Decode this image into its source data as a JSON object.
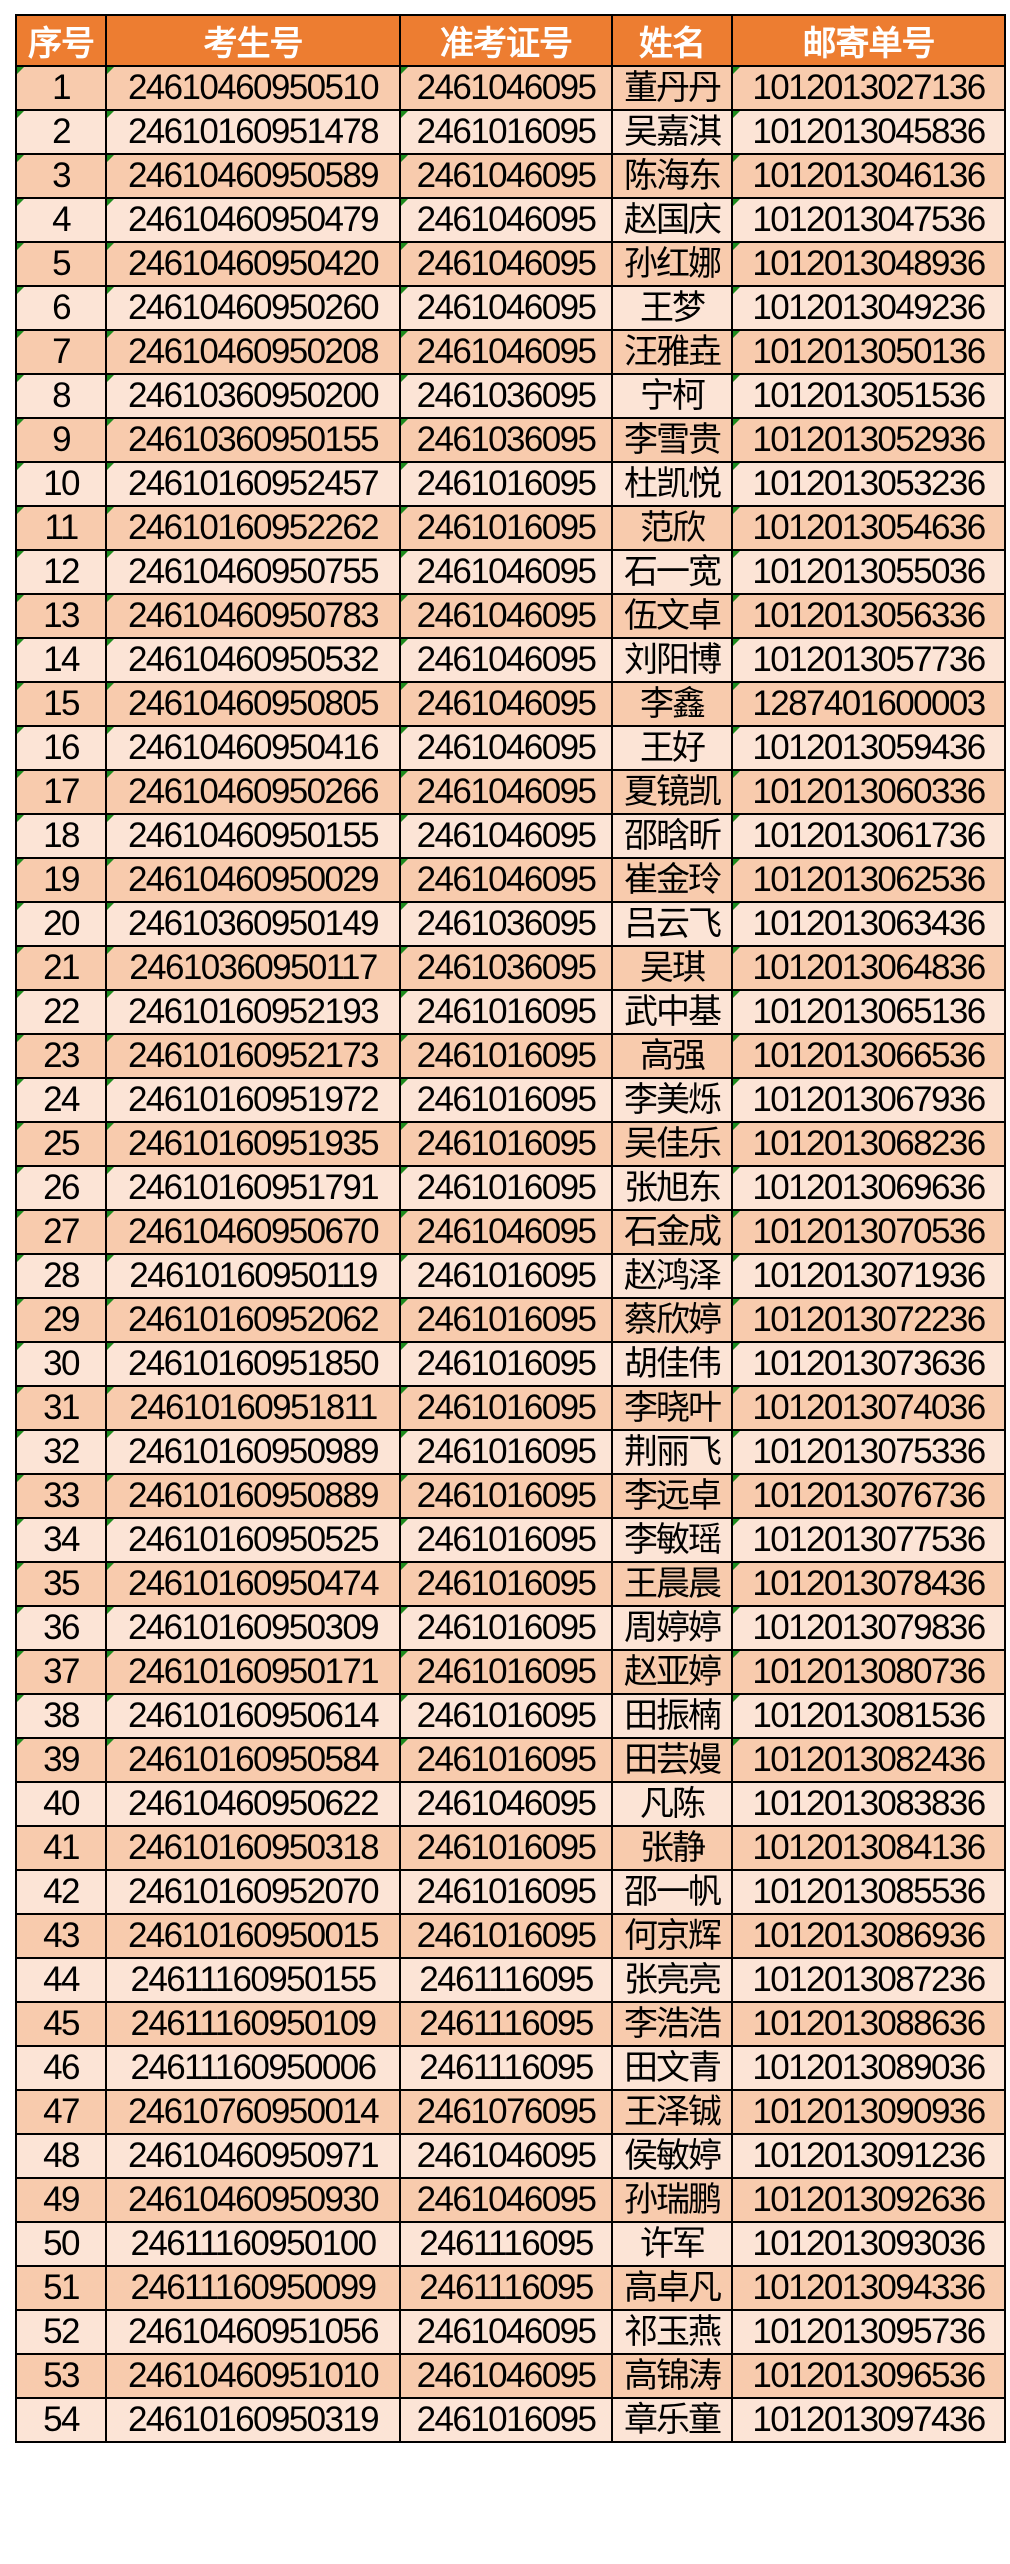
{
  "table": {
    "headers": [
      "序号",
      "考生号",
      "准考证号",
      "姓名",
      "邮寄单号"
    ],
    "colors": {
      "header": "#ED7D31",
      "row_odd": "#F8CBAD",
      "row_even": "#FCE4D6",
      "flag": "#1E8B1E"
    },
    "rows": [
      [
        "1",
        "24610460950510",
        "2461046095",
        "董丹丹",
        "1012013027136",
        true
      ],
      [
        "2",
        "24610160951478",
        "2461016095",
        "吴嘉淇",
        "1012013045836",
        true
      ],
      [
        "3",
        "24610460950589",
        "2461046095",
        "陈海东",
        "1012013046136",
        true
      ],
      [
        "4",
        "24610460950479",
        "2461046095",
        "赵国庆",
        "1012013047536",
        true
      ],
      [
        "5",
        "24610460950420",
        "2461046095",
        "孙红娜",
        "1012013048936",
        true
      ],
      [
        "6",
        "24610460950260",
        "2461046095",
        "王梦",
        "1012013049236",
        true
      ],
      [
        "7",
        "24610460950208",
        "2461046095",
        "汪雅垚",
        "1012013050136",
        true
      ],
      [
        "8",
        "24610360950200",
        "2461036095",
        "宁柯",
        "1012013051536",
        true
      ],
      [
        "9",
        "24610360950155",
        "2461036095",
        "李雪贵",
        "1012013052936",
        true
      ],
      [
        "10",
        "24610160952457",
        "2461016095",
        "杜凯悦",
        "1012013053236",
        true
      ],
      [
        "11",
        "24610160952262",
        "2461016095",
        "范欣",
        "1012013054636",
        true
      ],
      [
        "12",
        "24610460950755",
        "2461046095",
        "石一宽",
        "1012013055036",
        true
      ],
      [
        "13",
        "24610460950783",
        "2461046095",
        "伍文卓",
        "1012013056336",
        true
      ],
      [
        "14",
        "24610460950532",
        "2461046095",
        "刘阳博",
        "1012013057736",
        true
      ],
      [
        "15",
        "24610460950805",
        "2461046095",
        "李鑫",
        "1287401600003",
        true
      ],
      [
        "16",
        "24610460950416",
        "2461046095",
        "王好",
        "1012013059436",
        true
      ],
      [
        "17",
        "24610460950266",
        "2461046095",
        "夏镜凯",
        "1012013060336",
        true
      ],
      [
        "18",
        "24610460950155",
        "2461046095",
        "邵晗昕",
        "1012013061736",
        true
      ],
      [
        "19",
        "24610460950029",
        "2461046095",
        "崔金玲",
        "1012013062536",
        true
      ],
      [
        "20",
        "24610360950149",
        "2461036095",
        "吕云飞",
        "1012013063436",
        true
      ],
      [
        "21",
        "24610360950117",
        "2461036095",
        "吴琪",
        "1012013064836",
        true
      ],
      [
        "22",
        "24610160952193",
        "2461016095",
        "武中基",
        "1012013065136",
        true
      ],
      [
        "23",
        "24610160952173",
        "2461016095",
        "高强",
        "1012013066536",
        true
      ],
      [
        "24",
        "24610160951972",
        "2461016095",
        "李美烁",
        "1012013067936",
        true
      ],
      [
        "25",
        "24610160951935",
        "2461016095",
        "吴佳乐",
        "1012013068236",
        true
      ],
      [
        "26",
        "24610160951791",
        "2461016095",
        "张旭东",
        "1012013069636",
        true
      ],
      [
        "27",
        "24610460950670",
        "2461046095",
        "石金成",
        "1012013070536",
        true
      ],
      [
        "28",
        "24610160950119",
        "2461016095",
        "赵鸿泽",
        "1012013071936",
        true
      ],
      [
        "29",
        "24610160952062",
        "2461016095",
        "蔡欣婷",
        "1012013072236",
        true
      ],
      [
        "30",
        "24610160951850",
        "2461016095",
        "胡佳伟",
        "1012013073636",
        true
      ],
      [
        "31",
        "24610160951811",
        "2461016095",
        "李晓叶",
        "1012013074036",
        true
      ],
      [
        "32",
        "24610160950989",
        "2461016095",
        "荆丽飞",
        "1012013075336",
        true
      ],
      [
        "33",
        "24610160950889",
        "2461016095",
        "李远卓",
        "1012013076736",
        true
      ],
      [
        "34",
        "24610160950525",
        "2461016095",
        "李敏瑶",
        "1012013077536",
        true
      ],
      [
        "35",
        "24610160950474",
        "2461016095",
        "王晨晨",
        "1012013078436",
        true
      ],
      [
        "36",
        "24610160950309",
        "2461016095",
        "周婷婷",
        "1012013079836",
        true
      ],
      [
        "37",
        "24610160950171",
        "2461016095",
        "赵亚婷",
        "1012013080736",
        true
      ],
      [
        "38",
        "24610160950614",
        "2461016095",
        "田振楠",
        "1012013081536",
        true
      ],
      [
        "39",
        "24610160950584",
        "2461016095",
        "田芸嫚",
        "1012013082436",
        true
      ],
      [
        "40",
        "24610460950622",
        "2461046095",
        "凡陈",
        "1012013083836",
        false
      ],
      [
        "41",
        "24610160950318",
        "2461016095",
        "张静",
        "1012013084136",
        false
      ],
      [
        "42",
        "24610160952070",
        "2461016095",
        "邵一帆",
        "1012013085536",
        false
      ],
      [
        "43",
        "24610160950015",
        "2461016095",
        "何京辉",
        "1012013086936",
        false
      ],
      [
        "44",
        "24611160950155",
        "2461116095",
        "张亮亮",
        "1012013087236",
        false
      ],
      [
        "45",
        "24611160950109",
        "2461116095",
        "李浩浩",
        "1012013088636",
        false
      ],
      [
        "46",
        "24611160950006",
        "2461116095",
        "田文青",
        "1012013089036",
        false
      ],
      [
        "47",
        "24610760950014",
        "2461076095",
        "王泽铖",
        "1012013090936",
        false
      ],
      [
        "48",
        "24610460950971",
        "2461046095",
        "侯敏婷",
        "1012013091236",
        false
      ],
      [
        "49",
        "24610460950930",
        "2461046095",
        "孙瑞鹏",
        "1012013092636",
        false
      ],
      [
        "50",
        "24611160950100",
        "2461116095",
        "许军",
        "1012013093036",
        false
      ],
      [
        "51",
        "24611160950099",
        "2461116095",
        "高卓凡",
        "1012013094336",
        false
      ],
      [
        "52",
        "24610460951056",
        "2461046095",
        "祁玉燕",
        "1012013095736",
        false
      ],
      [
        "53",
        "24610460951010",
        "2461046095",
        "高锦涛",
        "1012013096536",
        false
      ],
      [
        "54",
        "24610160950319",
        "2461016095",
        "章乐童",
        "1012013097436",
        false
      ]
    ]
  }
}
